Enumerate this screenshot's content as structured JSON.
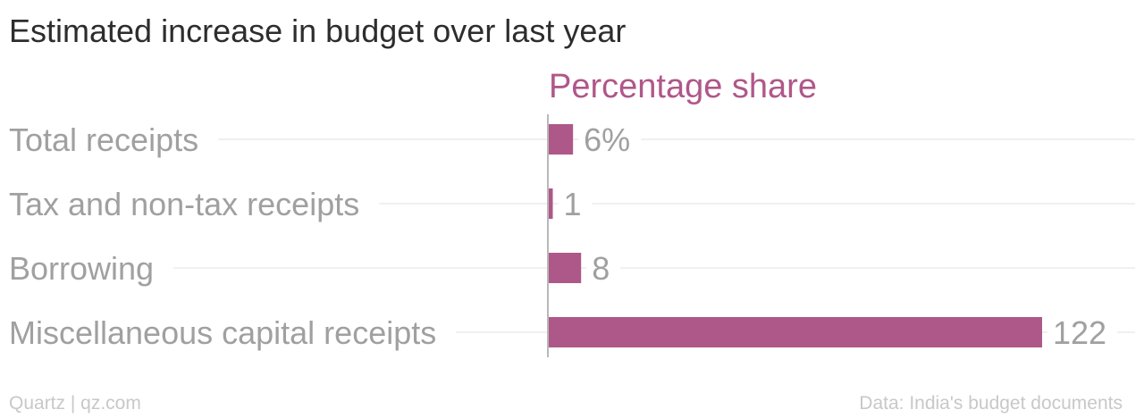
{
  "title": "Estimated increase in budget over last year",
  "footer": {
    "source_left": "Quartz | qz.com",
    "source_right": "Data: India's budget documents"
  },
  "colors": {
    "bar": "#ad5888",
    "series_title": "#b0578a",
    "label": "#a0a0a0",
    "gridline": "#ebebeb",
    "axis": "#b8b8b8"
  },
  "chart_data": {
    "type": "bar",
    "orientation": "horizontal",
    "series_title": "Percentage share",
    "categories": [
      "Total receipts",
      "Tax and non-tax receipts",
      "Borrowing",
      "Miscellaneous capital receipts"
    ],
    "values": [
      6,
      1,
      8,
      122
    ],
    "value_labels": [
      "6%",
      "1",
      "8",
      "122"
    ],
    "xlim": [
      0,
      122
    ],
    "grid": true,
    "legend": "none"
  }
}
